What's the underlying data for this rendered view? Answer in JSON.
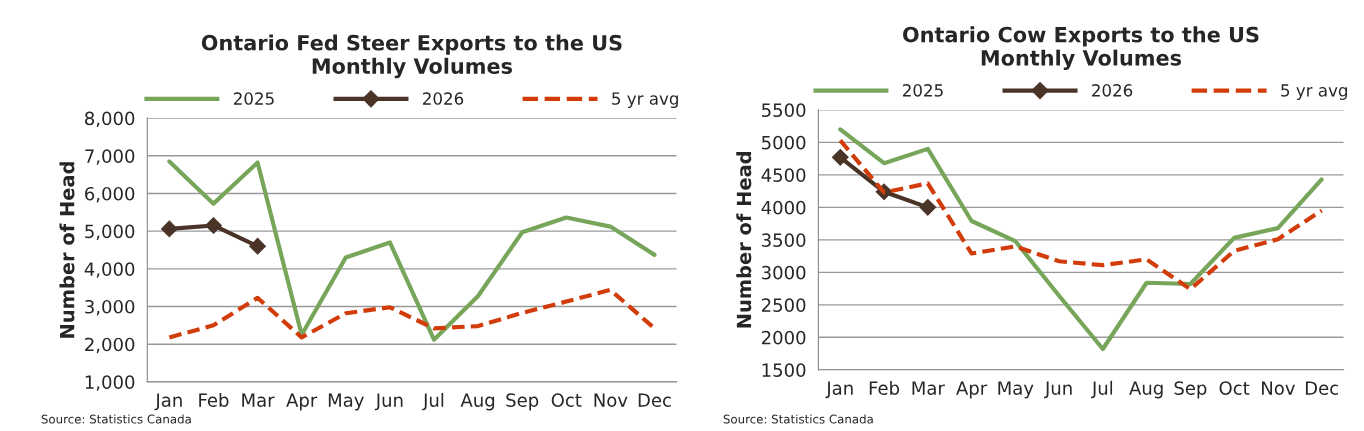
{
  "chart_data": [
    {
      "type": "line",
      "title": "Ontario Fed Steer Exports to the US\nMonthly Volumes",
      "ylabel": "Number of Head",
      "categories": [
        "Jan",
        "Feb",
        "Mar",
        "Apr",
        "May",
        "Jun",
        "Jul",
        "Aug",
        "Sep",
        "Oct",
        "Nov",
        "Dec"
      ],
      "series": [
        {
          "name": "2025",
          "color": "#77a55a",
          "line_style": "solid",
          "marker": "none",
          "values": [
            6850,
            5730,
            6820,
            2250,
            4300,
            4700,
            2120,
            3280,
            4970,
            5360,
            5120,
            4370
          ]
        },
        {
          "name": "2026",
          "color": "#4a3428",
          "line_style": "solid",
          "marker": "diamond",
          "values": [
            5060,
            5150,
            4600,
            null,
            null,
            null,
            null,
            null,
            null,
            null,
            null,
            null
          ]
        },
        {
          "name": "5 yr avg",
          "color": "#d23c0a",
          "line_style": "dashed",
          "marker": "none",
          "values": [
            2180,
            2500,
            3230,
            2180,
            2820,
            2980,
            2420,
            2480,
            2830,
            3130,
            3440,
            2420
          ]
        }
      ],
      "ylim": [
        1000,
        8000
      ],
      "yticks": [
        {
          "value": 1000,
          "label": "1,000"
        },
        {
          "value": 2000,
          "label": "2,000"
        },
        {
          "value": 3000,
          "label": "3,000"
        },
        {
          "value": 4000,
          "label": "4,000"
        },
        {
          "value": 5000,
          "label": "5,000"
        },
        {
          "value": 6000,
          "label": "6,000"
        },
        {
          "value": 7000,
          "label": "7,000"
        },
        {
          "value": 8000,
          "label": "8,000"
        }
      ],
      "grid": "y",
      "legend": "top",
      "annotations": [
        "Source: Statistics Canada"
      ]
    },
    {
      "type": "line",
      "title": "Ontario Cow Exports to the US\nMonthly Volumes",
      "ylabel": "Number of Head",
      "categories": [
        "Jan",
        "Feb",
        "Mar",
        "Apr",
        "May",
        "Jun",
        "Jul",
        "Aug",
        "Sep",
        "Oct",
        "Nov",
        "Dec"
      ],
      "series": [
        {
          "name": "2025",
          "color": "#77a55a",
          "line_style": "solid",
          "marker": "none",
          "values": [
            5200,
            4680,
            4900,
            3790,
            3480,
            2640,
            1820,
            2840,
            2820,
            3530,
            3680,
            4430
          ]
        },
        {
          "name": "2026",
          "color": "#4a3428",
          "line_style": "solid",
          "marker": "diamond",
          "values": [
            4770,
            4240,
            4000,
            null,
            null,
            null,
            null,
            null,
            null,
            null,
            null,
            null
          ]
        },
        {
          "name": "5 yr avg",
          "color": "#d23c0a",
          "line_style": "dashed",
          "marker": "none",
          "values": [
            5030,
            4230,
            4370,
            3290,
            3400,
            3170,
            3110,
            3200,
            2740,
            3330,
            3510,
            3950
          ]
        }
      ],
      "ylim": [
        1500,
        5500
      ],
      "yticks": [
        1500,
        2000,
        2500,
        3000,
        3500,
        4000,
        4500,
        5000,
        5500
      ],
      "grid": "y",
      "legend": "top",
      "annotations": [
        "Source: Statistics Canada"
      ]
    }
  ]
}
